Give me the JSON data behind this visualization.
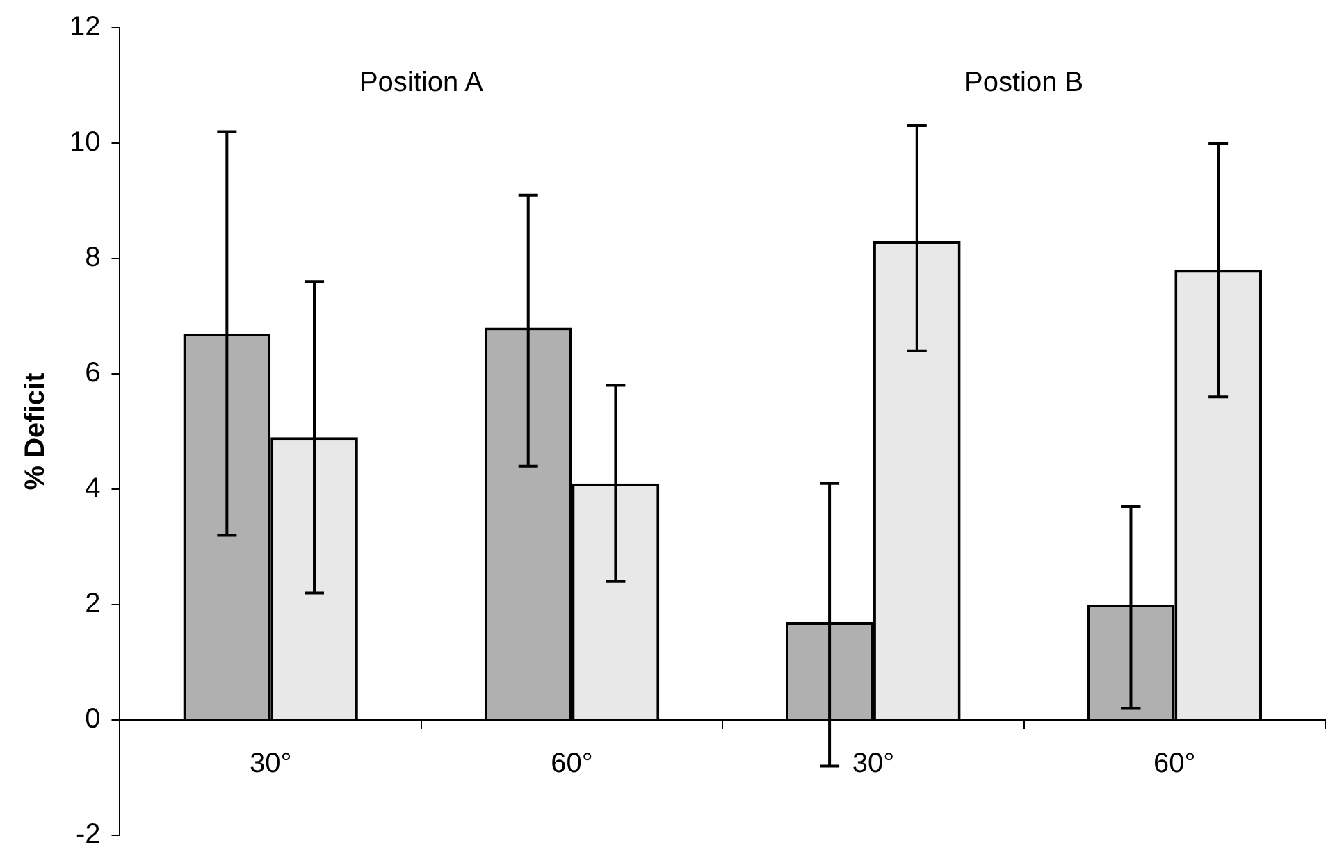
{
  "chart_data": {
    "type": "bar",
    "ylabel": "% Deficit",
    "annotations": [
      "Position A",
      "Postion B"
    ],
    "categories": [
      "30°",
      "60°",
      "30°",
      "60°"
    ],
    "series": [
      {
        "color": "#b0b0b0",
        "values": [
          6.7,
          6.8,
          1.7,
          2.0
        ],
        "errors": [
          [
            3.2,
            10.2
          ],
          [
            4.4,
            9.1
          ],
          [
            -0.8,
            4.1
          ],
          [
            0.2,
            3.7
          ]
        ]
      },
      {
        "color": "#e8e8e8",
        "values": [
          4.9,
          4.1,
          8.3,
          7.8
        ],
        "errors": [
          [
            2.2,
            7.6
          ],
          [
            2.4,
            5.8
          ],
          [
            6.4,
            10.3
          ],
          [
            5.6,
            10.0
          ]
        ]
      }
    ],
    "ylim": [
      -2,
      12
    ],
    "yticks": [
      -2,
      0,
      2,
      4,
      6,
      8,
      10,
      12
    ],
    "grid": false,
    "legend": false
  }
}
